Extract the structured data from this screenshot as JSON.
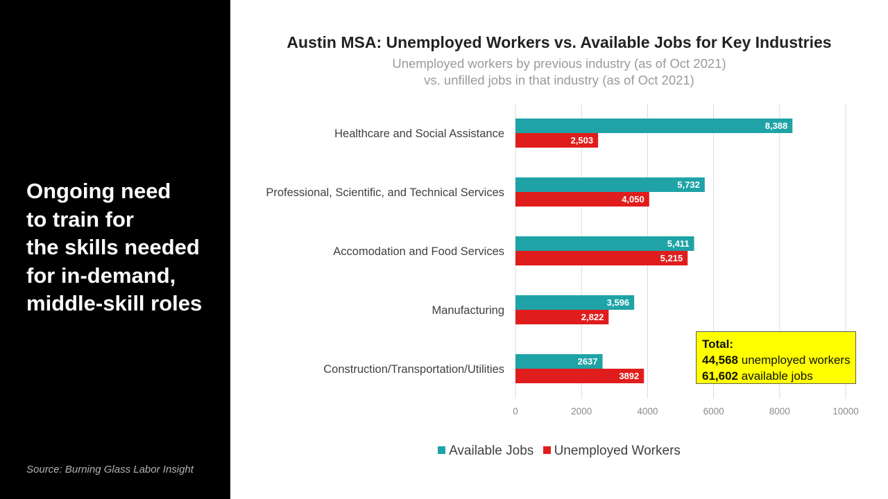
{
  "side": {
    "headline_lines": [
      "Ongoing need",
      "to train for",
      "the skills needed",
      "for in-demand,",
      "middle-skill roles"
    ],
    "source": "Source: Burning Glass Labor Insight"
  },
  "total": {
    "label": "Total:",
    "unemployed_value": "44,568",
    "unemployed_text": "unemployed workers",
    "jobs_value": "61,602",
    "jobs_text": "available jobs"
  },
  "colors": {
    "available": "#1fa3a6",
    "unemployed": "#e01d1d",
    "grid": "#d9d9d9",
    "panel": "#000000",
    "callout": "#ffff00"
  },
  "chart_data": {
    "type": "bar",
    "orientation": "horizontal",
    "title": "Austin MSA: Unemployed Workers vs. Available Jobs for Key Industries",
    "subtitle_lines": [
      "Unemployed workers by previous industry (as of Oct 2021)",
      "vs. unfilled jobs in that industry (as of Oct 2021)"
    ],
    "categories": [
      "Healthcare and Social Assistance",
      "Professional, Scientific, and Technical Services",
      "Accomodation and Food Services",
      "Manufacturing",
      "Construction/Transportation/Utilities"
    ],
    "series": [
      {
        "name": "Available Jobs",
        "values": [
          8388,
          5732,
          5411,
          3596,
          2637
        ],
        "labels": [
          "8,388",
          "5,732",
          "5,411",
          "3,596",
          "2637"
        ]
      },
      {
        "name": "Unemployed Workers",
        "values": [
          2503,
          4050,
          5215,
          2822,
          3892
        ],
        "labels": [
          "2,503",
          "4,050",
          "5,215",
          "2,822",
          "3892"
        ]
      }
    ],
    "xlim": [
      0,
      10000
    ],
    "xticks": [
      0,
      2000,
      4000,
      6000,
      8000,
      10000
    ],
    "grid": true,
    "legend": "bottom"
  }
}
